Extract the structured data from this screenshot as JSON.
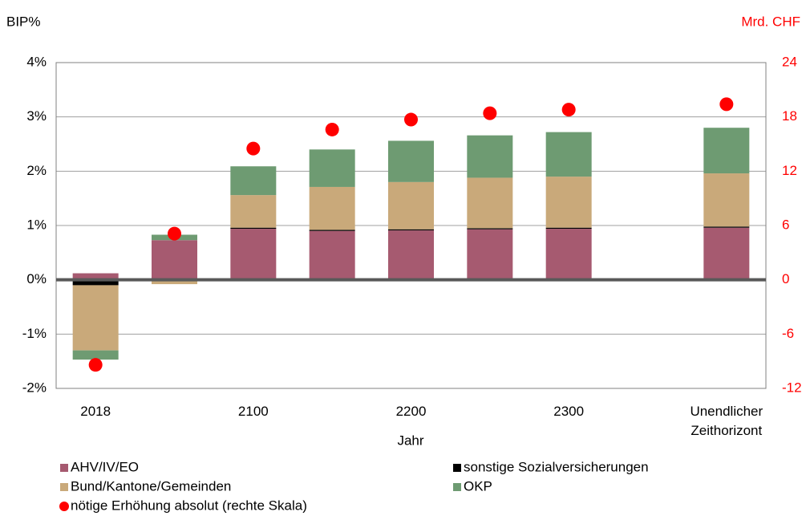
{
  "chart_data": {
    "type": "bar",
    "stacked": true,
    "y_label": "BIP%",
    "y2_label": "Mrd. CHF",
    "x_label": "Jahr",
    "categories": [
      "2018",
      null,
      "2100",
      null,
      "2200",
      null,
      "2300",
      null,
      "Unendlicher Zeithorizont"
    ],
    "series": [
      {
        "name": "AHV/IV/EO",
        "color": "#a65a70",
        "values": [
          0.12,
          0.73,
          0.94,
          0.9,
          0.91,
          0.93,
          0.94,
          null,
          0.96
        ]
      },
      {
        "name": "sonstige Sozialversicherungen",
        "color": "#000000",
        "values": [
          -0.1,
          0,
          0.02,
          0.02,
          0.02,
          0.02,
          0.02,
          null,
          0.02
        ]
      },
      {
        "name": "Bund/Kantone/Gemeinden",
        "color": "#c9a97a",
        "values": [
          -1.2,
          -0.08,
          0.6,
          0.79,
          0.87,
          0.93,
          0.94,
          null,
          0.98
        ]
      },
      {
        "name": "OKP",
        "color": "#6e9b72",
        "values": [
          -0.17,
          0.1,
          0.53,
          0.69,
          0.76,
          0.78,
          0.82,
          null,
          0.84
        ]
      },
      {
        "name": "nötige Erhöhung absolut (rechte Skala)",
        "type": "scatter",
        "axis": "y2",
        "color": "#ff0000",
        "values": [
          -9.4,
          5.1,
          14.5,
          16.6,
          17.7,
          18.4,
          18.8,
          null,
          19.4
        ]
      }
    ],
    "ylim": [
      -2,
      4
    ],
    "yticks": [
      {
        "value": -2,
        "label": "-2%"
      },
      {
        "value": -1,
        "label": "-1%"
      },
      {
        "value": 0,
        "label": "0%"
      },
      {
        "value": 1,
        "label": "1%"
      },
      {
        "value": 2,
        "label": "2%"
      },
      {
        "value": 3,
        "label": "3%"
      },
      {
        "value": 4,
        "label": "4%"
      }
    ],
    "y2lim": [
      -12,
      24
    ],
    "y2ticks": [
      -12,
      -6,
      0,
      6,
      12,
      18,
      24
    ],
    "grid": true
  }
}
